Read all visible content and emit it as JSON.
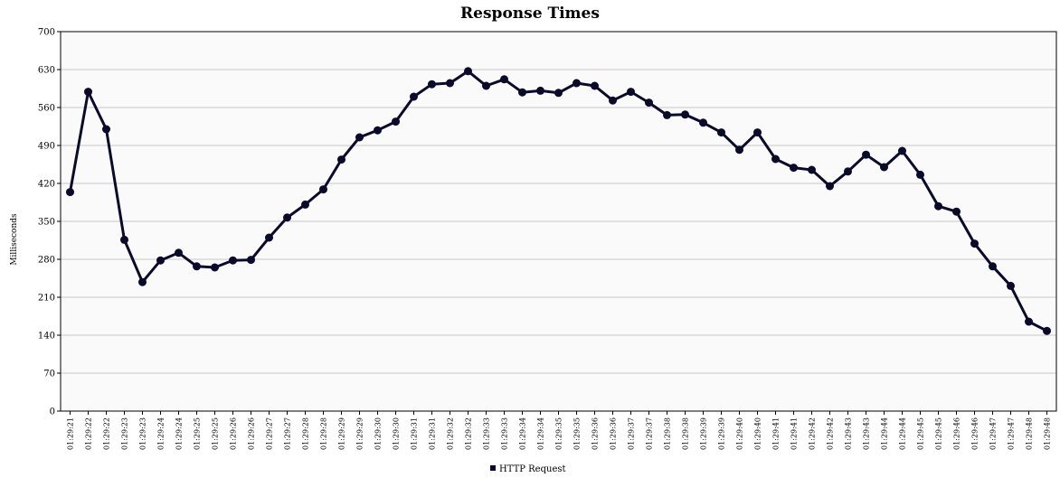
{
  "chart_data": {
    "type": "line",
    "title": "Response Times",
    "xlabel": "",
    "ylabel": "Milliseconds",
    "ylim": [
      0,
      700
    ],
    "yticks": [
      0,
      70,
      140,
      210,
      280,
      350,
      420,
      490,
      560,
      630,
      700
    ],
    "grid": true,
    "legend_position": "bottom-center",
    "categories": [
      "01:29:21",
      "01:29:22",
      "01:29:22",
      "01:29:23",
      "01:29:23",
      "01:29:24",
      "01:29:24",
      "01:29:25",
      "01:29:25",
      "01:29:26",
      "01:29:26",
      "01:29:27",
      "01:29:27",
      "01:29:28",
      "01:29:28",
      "01:29:29",
      "01:29:29",
      "01:29:30",
      "01:29:30",
      "01:29:31",
      "01:29:31",
      "01:29:32",
      "01:29:32",
      "01:29:33",
      "01:29:33",
      "01:29:34",
      "01:29:34",
      "01:29:35",
      "01:29:35",
      "01:29:36",
      "01:29:36",
      "01:29:37",
      "01:29:37",
      "01:29:38",
      "01:29:38",
      "01:29:39",
      "01:29:39",
      "01:29:40",
      "01:29:40",
      "01:29:41",
      "01:29:41",
      "01:29:42",
      "01:29:42",
      "01:29:43",
      "01:29:43",
      "01:29:44",
      "01:29:44",
      "01:29:45",
      "01:29:45",
      "01:29:46",
      "01:29:46",
      "01:29:47",
      "01:29:47",
      "01:29:48",
      "01:29:48"
    ],
    "series": [
      {
        "name": "HTTP Request",
        "color": "#0a0a2a",
        "values": [
          404,
          589,
          520,
          316,
          238,
          278,
          292,
          267,
          265,
          278,
          279,
          320,
          357,
          381,
          409,
          464,
          505,
          518,
          534,
          580,
          603,
          605,
          627,
          600,
          612,
          588,
          591,
          587,
          605,
          600,
          573,
          589,
          569,
          546,
          547,
          532,
          514,
          482,
          514,
          465,
          449,
          445,
          415,
          442,
          473,
          450,
          480,
          436,
          378,
          368,
          309,
          267,
          231,
          165,
          148
        ]
      }
    ]
  }
}
